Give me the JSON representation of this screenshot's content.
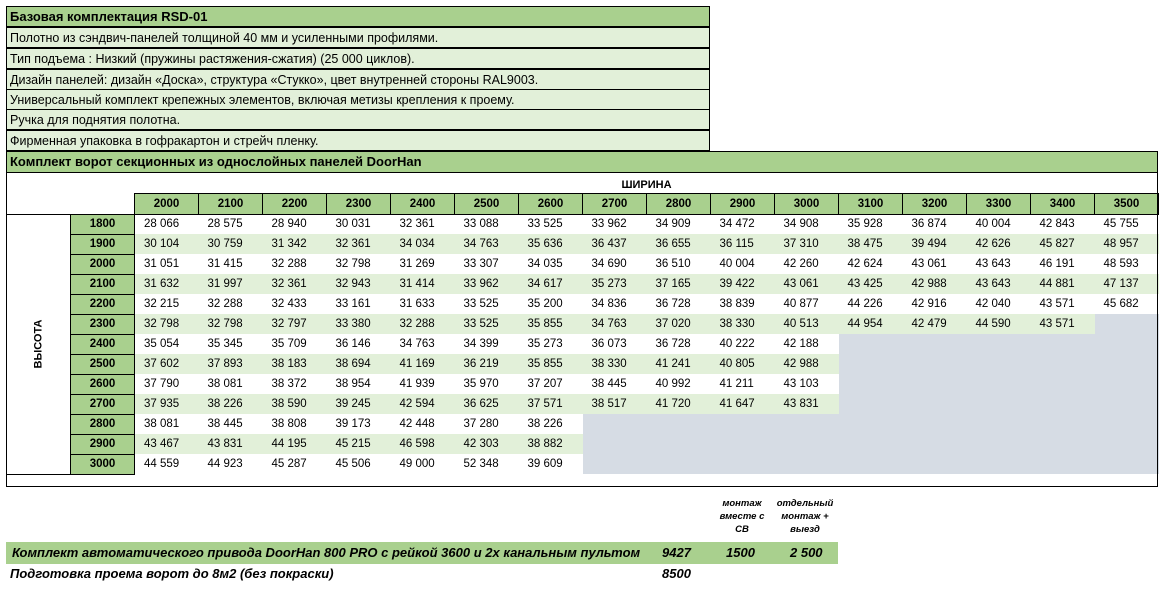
{
  "base": {
    "title": "Базовая комплектация RSD-01",
    "lines": [
      "Полотно из сэндвич-панелей толщиной 40 мм и усиленными профилями.",
      "Тип подъема : Низкий (пружины растяжения-сжатия) (25 000 циклов).",
      "Дизайн панелей: дизайн «Доска», структура «Стукко», цвет внутренней стороны RAL9003.",
      "Универсальный комплект крепежных элементов, включая метизы крепления к проему.",
      "Ручка для поднятия полотна.",
      "Фирменная упаковка в гофракартон и стрейч пленку."
    ]
  },
  "kit_title": "Комплект ворот секционных из однослойных панелей DoorHan",
  "width_label": "ШИРИНА",
  "height_label": "ВЫСОТА",
  "widths": [
    "2000",
    "2100",
    "2200",
    "2300",
    "2400",
    "2500",
    "2600",
    "2700",
    "2800",
    "2900",
    "3000",
    "3100",
    "3200",
    "3300",
    "3400",
    "3500"
  ],
  "rows": [
    {
      "h": "1800",
      "v": [
        "28 066",
        "28 575",
        "28 940",
        "30 031",
        "32 361",
        "33 088",
        "33 525",
        "33 962",
        "34 909",
        "34 472",
        "34 908",
        "35 928",
        "36 874",
        "40 004",
        "42 843",
        "45 755"
      ]
    },
    {
      "h": "1900",
      "v": [
        "30 104",
        "30 759",
        "31 342",
        "32 361",
        "34 034",
        "34 763",
        "35 636",
        "36 437",
        "36 655",
        "36 115",
        "37 310",
        "38 475",
        "39 494",
        "42 626",
        "45 827",
        "48 957"
      ]
    },
    {
      "h": "2000",
      "v": [
        "31 051",
        "31 415",
        "32 288",
        "32 798",
        "31 269",
        "33 307",
        "34 035",
        "34 690",
        "36 510",
        "40 004",
        "42 260",
        "42 624",
        "43 061",
        "43 643",
        "46 191",
        "48 593"
      ]
    },
    {
      "h": "2100",
      "v": [
        "31 632",
        "31 997",
        "32 361",
        "32 943",
        "31 414",
        "33 962",
        "34 617",
        "35 273",
        "37 165",
        "39 422",
        "43 061",
        "43 425",
        "42 988",
        "43 643",
        "44 881",
        "47 137"
      ]
    },
    {
      "h": "2200",
      "v": [
        "32 215",
        "32 288",
        "32 433",
        "33 161",
        "31 633",
        "33 525",
        "35 200",
        "34 836",
        "36 728",
        "38 839",
        "40 877",
        "44 226",
        "42 916",
        "42 040",
        "43 571",
        "45 682"
      ]
    },
    {
      "h": "2300",
      "v": [
        "32 798",
        "32 798",
        "32 797",
        "33 380",
        "32 288",
        "33 525",
        "35 855",
        "34 763",
        "37 020",
        "38 330",
        "40 513",
        "44 954",
        "42 479",
        "44 590",
        "43 571",
        ""
      ]
    },
    {
      "h": "2400",
      "v": [
        "35 054",
        "35 345",
        "35 709",
        "36 146",
        "34 763",
        "34 399",
        "35 273",
        "36 073",
        "36 728",
        "40 222",
        "42 188",
        "",
        "",
        "",
        "",
        ""
      ]
    },
    {
      "h": "2500",
      "v": [
        "37 602",
        "37 893",
        "38 183",
        "38 694",
        "41 169",
        "36 219",
        "35 855",
        "38 330",
        "41 241",
        "40 805",
        "42 988",
        "",
        "",
        "",
        "",
        ""
      ]
    },
    {
      "h": "2600",
      "v": [
        "37 790",
        "38 081",
        "38 372",
        "38 954",
        "41 939",
        "35 970",
        "37 207",
        "38 445",
        "40 992",
        "41 211",
        "43 103",
        "",
        "",
        "",
        "",
        ""
      ]
    },
    {
      "h": "2700",
      "v": [
        "37 935",
        "38 226",
        "38 590",
        "39 245",
        "42 594",
        "36 625",
        "37 571",
        "38 517",
        "41 720",
        "41 647",
        "43 831",
        "",
        "",
        "",
        "",
        ""
      ]
    },
    {
      "h": "2800",
      "v": [
        "38 081",
        "38 445",
        "38 808",
        "39 173",
        "42 448",
        "37 280",
        "38 226",
        "",
        "",
        "",
        "",
        "",
        "",
        "",
        "",
        ""
      ]
    },
    {
      "h": "2900",
      "v": [
        "43 467",
        "43 831",
        "44 195",
        "45 215",
        "46 598",
        "42 303",
        "38 882",
        "",
        "",
        "",
        "",
        "",
        "",
        "",
        "",
        ""
      ]
    },
    {
      "h": "3000",
      "v": [
        "44 559",
        "44 923",
        "45 287",
        "45 506",
        "49 000",
        "52 348",
        "39 609",
        "",
        "",
        "",
        "",
        "",
        "",
        "",
        "",
        ""
      ]
    }
  ],
  "notes": {
    "col1": [
      "монтаж",
      "вместе с",
      "СВ"
    ],
    "col2": [
      "отдельный",
      "монтаж +",
      "выезд"
    ]
  },
  "footer": [
    {
      "label": "Комплект автоматического привода DoorHan 800 PRO с рейкой 3600 и 2х канальным пультом",
      "price": "9427",
      "v1": "1500",
      "v2": "2 500"
    },
    {
      "label": "Подготовка проема ворот до 8м2 (без покраски)",
      "price": "8500",
      "v1": "",
      "v2": ""
    }
  ]
}
